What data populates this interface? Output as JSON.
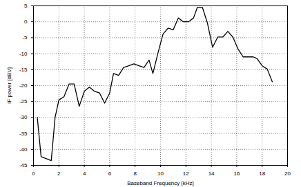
{
  "chart_data": {
    "type": "line",
    "x_label": "Baseband Frequency [kHz]",
    "y_label": "IF power [dBV]",
    "x": [
      0.3,
      0.6,
      1.4,
      1.7,
      2.0,
      2.4,
      2.8,
      3.2,
      3.6,
      4.0,
      4.4,
      4.8,
      5.2,
      5.6,
      6.0,
      6.3,
      6.7,
      7.1,
      7.5,
      7.9,
      8.3,
      8.7,
      9.1,
      9.4,
      9.8,
      10.2,
      10.6,
      11.0,
      11.4,
      11.8,
      12.2,
      12.6,
      12.9,
      13.3,
      13.7,
      14.1,
      14.5,
      14.9,
      15.3,
      15.7,
      16.1,
      16.5,
      16.9,
      17.3,
      17.6,
      18.0,
      18.4,
      18.8
    ],
    "values": [
      -30,
      -42.3,
      -43.5,
      -30,
      -24.5,
      -23.5,
      -19.5,
      -19.5,
      -26.5,
      -21.8,
      -20.5,
      -21.8,
      -22.3,
      -25.5,
      -22.3,
      -16.2,
      -16.8,
      -14.3,
      -13.8,
      -13.2,
      -13.8,
      -14.3,
      -12.0,
      -16.2,
      -9.8,
      -3.8,
      -2.0,
      -2.5,
      1.2,
      0.0,
      0.0,
      1.2,
      4.5,
      4.5,
      -0.5,
      -8.0,
      -4.8,
      -4.8,
      -3.0,
      -4.8,
      -8.5,
      -11.0,
      -11.0,
      -11.0,
      -11.5,
      -13.8,
      -14.8,
      -18.8
    ],
    "color": "#000000",
    "xlim": [
      0,
      20
    ],
    "xticks": [
      0,
      2,
      4,
      6,
      8,
      10,
      12,
      14,
      16,
      18,
      20
    ],
    "ylim": [
      -45,
      5
    ],
    "yticks": [
      -45,
      -40,
      -35,
      -30,
      -25,
      -20,
      -15,
      -10,
      -5,
      0,
      5
    ],
    "grid": true
  }
}
